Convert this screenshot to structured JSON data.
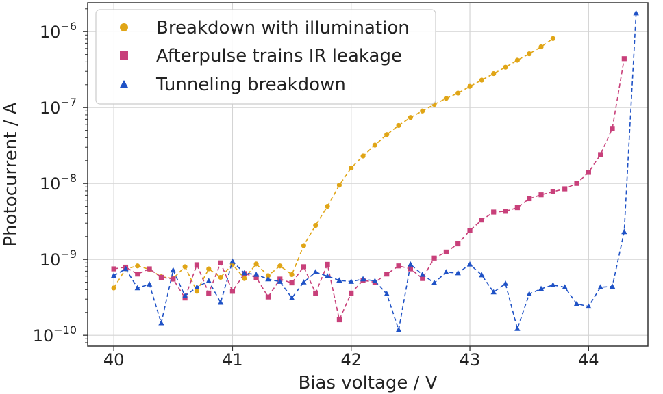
{
  "chart_data": {
    "type": "scatter",
    "xlabel": "Bias voltage / V",
    "ylabel": "Photocurrent / A",
    "xlim": [
      39.78,
      44.5
    ],
    "ylim": [
      7.2e-11,
      2.4e-06
    ],
    "yscale": "log",
    "grid": true,
    "legend_position": "top-left",
    "x_ticks": [
      40,
      41,
      42,
      43,
      44
    ],
    "y_ticks": [
      {
        "value": 1e-10,
        "base": "10",
        "exp": "−10"
      },
      {
        "value": 1e-09,
        "base": "10",
        "exp": "−9"
      },
      {
        "value": 1e-08,
        "base": "10",
        "exp": "−8"
      },
      {
        "value": 1e-07,
        "base": "10",
        "exp": "−7"
      },
      {
        "value": 1e-06,
        "base": "10",
        "exp": "−6"
      }
    ],
    "series": [
      {
        "name": "Breakdown with illumination",
        "color": "#e0a516",
        "marker": "circle",
        "line": "dashed",
        "x": [
          40.0,
          40.1,
          40.2,
          40.3,
          40.4,
          40.5,
          40.6,
          40.7,
          40.8,
          40.9,
          41.0,
          41.1,
          41.2,
          41.3,
          41.4,
          41.5,
          41.6,
          41.7,
          41.8,
          41.9,
          42.0,
          42.1,
          42.2,
          42.3,
          42.4,
          42.5,
          42.6,
          42.7,
          42.8,
          42.9,
          43.0,
          43.1,
          43.2,
          43.3,
          43.4,
          43.5,
          43.6,
          43.7
        ],
        "y": [
          4.2e-10,
          7.5e-10,
          8.2e-10,
          7.4e-10,
          5.9e-10,
          5.6e-10,
          8e-10,
          3.8e-10,
          7.5e-10,
          5.8e-10,
          8.6e-10,
          5.6e-10,
          8.7e-10,
          6.1e-10,
          8.2e-10,
          6.3e-10,
          1.52e-09,
          2.8e-09,
          5e-09,
          9.5e-09,
          1.6e-08,
          2.3e-08,
          3.2e-08,
          4.4e-08,
          5.8e-08,
          7.4e-08,
          9e-08,
          1.1e-07,
          1.32e-07,
          1.55e-07,
          1.9e-07,
          2.3e-07,
          2.8e-07,
          3.4e-07,
          4.2e-07,
          5.1e-07,
          6.3e-07,
          8.1e-07
        ]
      },
      {
        "name": "Afterpulse trains IR leakage",
        "color": "#c8407a",
        "marker": "square",
        "line": "dashed",
        "x": [
          40.0,
          40.1,
          40.2,
          40.3,
          40.4,
          40.5,
          40.6,
          40.7,
          40.8,
          40.9,
          41.0,
          41.1,
          41.2,
          41.3,
          41.4,
          41.5,
          41.6,
          41.7,
          41.8,
          41.9,
          42.0,
          42.1,
          42.2,
          42.3,
          42.4,
          42.5,
          42.6,
          42.7,
          42.8,
          42.9,
          43.0,
          43.1,
          43.2,
          43.3,
          43.4,
          43.5,
          43.6,
          43.7,
          43.8,
          43.9,
          44.0,
          44.1,
          44.2,
          44.3
        ],
        "y": [
          7.5e-10,
          7.9e-10,
          6.4e-10,
          7.5e-10,
          5.8e-10,
          5.5e-10,
          3.1e-10,
          8.5e-10,
          3.6e-10,
          9e-10,
          3.8e-10,
          6.5e-10,
          5.8e-10,
          3.2e-10,
          5.5e-10,
          4.9e-10,
          8e-10,
          3.6e-10,
          8.6e-10,
          1.6e-10,
          3.6e-10,
          5.3e-10,
          5e-10,
          6.4e-10,
          8.2e-10,
          7.5e-10,
          5.6e-10,
          1.04e-09,
          1.25e-09,
          1.6e-09,
          2.4e-09,
          3.3e-09,
          4.2e-09,
          4.3e-09,
          4.8e-09,
          6.3e-09,
          7.1e-09,
          7.8e-09,
          8.5e-09,
          1e-08,
          1.4e-08,
          2.4e-08,
          5.3e-08,
          4.4e-07
        ]
      },
      {
        "name": "Tunneling breakdown",
        "color": "#1f52c6",
        "marker": "triangle",
        "line": "dashed",
        "x": [
          40.0,
          40.1,
          40.2,
          40.3,
          40.4,
          40.5,
          40.6,
          40.7,
          40.8,
          40.9,
          41.0,
          41.1,
          41.2,
          41.3,
          41.4,
          41.5,
          41.6,
          41.7,
          41.8,
          41.9,
          42.0,
          42.1,
          42.2,
          42.3,
          42.4,
          42.5,
          42.6,
          42.7,
          42.8,
          42.9,
          43.0,
          43.1,
          43.2,
          43.3,
          43.4,
          43.5,
          43.6,
          43.7,
          43.8,
          43.9,
          44.0,
          44.1,
          44.2,
          44.3,
          44.4
        ],
        "y": [
          6.1e-10,
          7.5e-10,
          4.2e-10,
          4.7e-10,
          1.45e-10,
          7.2e-10,
          3.3e-10,
          4.3e-10,
          5.2e-10,
          2.7e-10,
          9.4e-10,
          6.6e-10,
          6.3e-10,
          5.5e-10,
          5.1e-10,
          3.1e-10,
          5e-10,
          6.8e-10,
          6e-10,
          5.3e-10,
          5.1e-10,
          5.5e-10,
          5.2e-10,
          3.5e-10,
          1.18e-10,
          8.6e-10,
          6.3e-10,
          4.9e-10,
          6.8e-10,
          6.6e-10,
          8.6e-10,
          6.2e-10,
          3.7e-10,
          4.8e-10,
          1.22e-10,
          3.5e-10,
          4.1e-10,
          4.6e-10,
          4.3e-10,
          2.6e-10,
          2.4e-10,
          4.3e-10,
          4.4e-10,
          2.3e-09,
          1.75e-06
        ]
      }
    ]
  }
}
